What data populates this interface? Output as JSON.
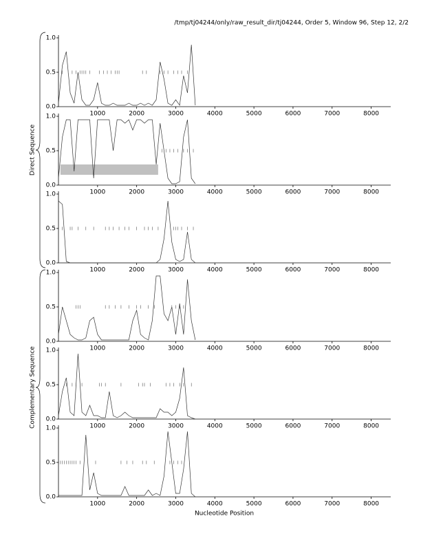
{
  "header": {
    "title": "/tmp/tj04244/only/raw_result_dir/tj04244, Order 5, Window 96, Step 12, 2/2"
  },
  "group_labels": [
    "Direct Sequence",
    "Complementary Sequence"
  ],
  "xlabel": "Nucleotide Position",
  "chart_data": [
    {
      "type": "line",
      "xlim": [
        0,
        8500
      ],
      "ylim": [
        0,
        1
      ],
      "xticks": [
        1000,
        2000,
        3000,
        4000,
        5000,
        6000,
        7000,
        8000
      ],
      "yticks": [
        {
          "value": 0,
          "label": "0.0"
        },
        {
          "value": 0.5,
          "label": "0.5"
        },
        {
          "value": 1,
          "label": "1.0"
        }
      ],
      "x": [
        0,
        100,
        200,
        300,
        400,
        500,
        600,
        700,
        800,
        900,
        1000,
        1100,
        1200,
        1300,
        1400,
        1500,
        1600,
        1700,
        1800,
        1900,
        2000,
        2100,
        2200,
        2300,
        2400,
        2500,
        2600,
        2700,
        2800,
        2900,
        3000,
        3100,
        3200,
        3300,
        3400,
        3500
      ],
      "series": [
        {
          "color": "#333333",
          "values": [
            0.05,
            0.6,
            0.8,
            0.2,
            0.05,
            0.5,
            0.1,
            0.02,
            0.02,
            0.1,
            0.35,
            0.05,
            0.02,
            0.02,
            0.05,
            0.02,
            0.02,
            0.02,
            0.05,
            0.02,
            0.02,
            0.05,
            0.02,
            0.05,
            0.02,
            0.1,
            0.65,
            0.4,
            0.05,
            0.02,
            0.1,
            0.02,
            0.45,
            0.2,
            0.9,
            0.02
          ]
        }
      ],
      "markers": {
        "y": 0.5,
        "x": [
          100,
          250,
          350,
          450,
          550,
          600,
          650,
          700,
          800,
          1050,
          1150,
          1250,
          1350,
          1450,
          1500,
          1550,
          2150,
          2250,
          2600,
          2700,
          2800,
          2950,
          3050,
          3150,
          3300
        ]
      }
    },
    {
      "type": "line",
      "xlim": [
        0,
        8500
      ],
      "ylim": [
        0,
        1
      ],
      "xticks": [
        1000,
        2000,
        3000,
        4000,
        5000,
        6000,
        7000,
        8000
      ],
      "yticks": [
        {
          "value": 0,
          "label": "0.0"
        },
        {
          "value": 0.5,
          "label": "0.5"
        },
        {
          "value": 1,
          "label": "1.0"
        }
      ],
      "x": [
        0,
        100,
        200,
        300,
        400,
        500,
        600,
        700,
        800,
        900,
        1000,
        1100,
        1200,
        1300,
        1400,
        1500,
        1600,
        1700,
        1800,
        1900,
        2000,
        2100,
        2200,
        2300,
        2400,
        2500,
        2600,
        2700,
        2800,
        2900,
        3000,
        3100,
        3200,
        3300,
        3400,
        3500
      ],
      "series": [
        {
          "color": "#333333",
          "values": [
            0.1,
            0.7,
            0.95,
            0.95,
            0.2,
            0.95,
            0.95,
            0.95,
            0.95,
            0.1,
            0.95,
            0.95,
            0.95,
            0.95,
            0.5,
            0.95,
            0.95,
            0.9,
            0.95,
            0.8,
            0.95,
            0.95,
            0.9,
            0.95,
            0.95,
            0.3,
            0.9,
            0.5,
            0.1,
            0.02,
            0.02,
            0.05,
            0.7,
            0.95,
            0.1,
            0.02
          ]
        }
      ],
      "markers": {
        "y": 0.5,
        "x": [
          2650,
          2750,
          2850,
          2950,
          3050,
          3200,
          3300,
          3450
        ]
      },
      "highlight": {
        "x": [
          50,
          2550
        ],
        "y": [
          0.15,
          0.3
        ],
        "color": "#c0c0c0"
      }
    },
    {
      "type": "line",
      "xlim": [
        0,
        8500
      ],
      "ylim": [
        0,
        1
      ],
      "xticks": [
        1000,
        2000,
        3000,
        4000,
        5000,
        6000,
        7000,
        8000
      ],
      "yticks": [
        {
          "value": 0,
          "label": "0.0"
        },
        {
          "value": 0.5,
          "label": "0.5"
        },
        {
          "value": 1,
          "label": "1.0"
        }
      ],
      "x": [
        0,
        100,
        200,
        300,
        400,
        500,
        600,
        700,
        800,
        900,
        1000,
        1100,
        1200,
        1300,
        1400,
        1500,
        1600,
        1700,
        1800,
        1900,
        2000,
        2100,
        2200,
        2300,
        2400,
        2500,
        2600,
        2700,
        2800,
        2900,
        3000,
        3100,
        3200,
        3300,
        3400,
        3500
      ],
      "series": [
        {
          "color": "#333333",
          "values": [
            0.9,
            0.85,
            0.02,
            0,
            0,
            0,
            0,
            0,
            0,
            0,
            0,
            0,
            0,
            0,
            0,
            0,
            0,
            0,
            0,
            0,
            0,
            0,
            0,
            0,
            0,
            0,
            0.05,
            0.35,
            0.9,
            0.3,
            0.05,
            0.02,
            0.05,
            0.45,
            0.05,
            0
          ]
        }
      ],
      "markers": {
        "y": 0.5,
        "x": [
          100,
          300,
          350,
          500,
          700,
          900,
          1200,
          1300,
          1400,
          1550,
          1700,
          1800,
          2000,
          2200,
          2300,
          2400,
          2550,
          2950,
          3000,
          3050,
          3150,
          3300,
          3450
        ]
      }
    },
    {
      "type": "line",
      "xlim": [
        0,
        8500
      ],
      "ylim": [
        0,
        1
      ],
      "xticks": [
        1000,
        2000,
        3000,
        4000,
        5000,
        6000,
        7000,
        8000
      ],
      "yticks": [
        {
          "value": 0,
          "label": "0.0"
        },
        {
          "value": 0.5,
          "label": "0.5"
        },
        {
          "value": 1,
          "label": "1.0"
        }
      ],
      "x": [
        0,
        100,
        200,
        300,
        400,
        500,
        600,
        700,
        800,
        900,
        1000,
        1100,
        1200,
        1300,
        1400,
        1500,
        1600,
        1700,
        1800,
        1900,
        2000,
        2100,
        2200,
        2300,
        2400,
        2500,
        2600,
        2700,
        2800,
        2900,
        3000,
        3100,
        3200,
        3300,
        3400,
        3500
      ],
      "series": [
        {
          "color": "#333333",
          "values": [
            0.1,
            0.5,
            0.3,
            0.1,
            0.05,
            0.02,
            0.02,
            0.05,
            0.3,
            0.35,
            0.1,
            0.02,
            0.02,
            0.02,
            0.02,
            0.02,
            0.02,
            0.02,
            0.02,
            0.3,
            0.45,
            0.1,
            0.05,
            0.02,
            0.3,
            0.95,
            0.95,
            0.4,
            0.3,
            0.5,
            0.1,
            0.55,
            0.1,
            0.9,
            0.3,
            0.02
          ]
        }
      ],
      "markers": {
        "y": 0.5,
        "x": [
          450,
          500,
          550,
          1200,
          1300,
          1450,
          1600,
          1800,
          2000,
          2100,
          2300,
          2450,
          2900,
          3000,
          3100,
          3200
        ]
      }
    },
    {
      "type": "line",
      "xlim": [
        0,
        8500
      ],
      "ylim": [
        0,
        1
      ],
      "xticks": [
        1000,
        2000,
        3000,
        4000,
        5000,
        6000,
        7000,
        8000
      ],
      "yticks": [
        {
          "value": 0,
          "label": "0.0"
        },
        {
          "value": 0.5,
          "label": "0.5"
        },
        {
          "value": 1,
          "label": "1.0"
        }
      ],
      "x": [
        0,
        100,
        200,
        300,
        400,
        500,
        600,
        700,
        800,
        900,
        1000,
        1100,
        1200,
        1300,
        1400,
        1500,
        1600,
        1700,
        1800,
        1900,
        2000,
        2100,
        2200,
        2300,
        2400,
        2500,
        2600,
        2700,
        2800,
        2900,
        3000,
        3100,
        3200,
        3300,
        3400,
        3500
      ],
      "series": [
        {
          "color": "#333333",
          "values": [
            0.05,
            0.4,
            0.6,
            0.1,
            0.05,
            0.95,
            0.1,
            0.05,
            0.2,
            0.05,
            0.05,
            0.02,
            0.02,
            0.4,
            0.05,
            0.02,
            0.05,
            0.1,
            0.05,
            0.02,
            0.02,
            0.02,
            0.02,
            0.02,
            0.02,
            0.02,
            0.15,
            0.1,
            0.1,
            0.05,
            0.1,
            0.3,
            0.75,
            0.05,
            0.02,
            0
          ]
        }
      ],
      "markers": {
        "y": 0.5,
        "x": [
          200,
          350,
          450,
          600,
          1050,
          1100,
          1200,
          1600,
          2050,
          2150,
          2200,
          2350,
          2750,
          2850,
          2950,
          3100,
          3200,
          3400
        ]
      }
    },
    {
      "type": "line",
      "xlim": [
        0,
        8500
      ],
      "ylim": [
        0,
        1
      ],
      "xticks": [
        1000,
        2000,
        3000,
        4000,
        5000,
        6000,
        7000,
        8000
      ],
      "yticks": [
        {
          "value": 0,
          "label": "0.0"
        },
        {
          "value": 0.5,
          "label": "0.5"
        },
        {
          "value": 1,
          "label": "1.0"
        }
      ],
      "x": [
        0,
        100,
        200,
        300,
        400,
        500,
        600,
        700,
        800,
        900,
        1000,
        1100,
        1200,
        1300,
        1400,
        1500,
        1600,
        1700,
        1800,
        1900,
        2000,
        2100,
        2200,
        2300,
        2400,
        2500,
        2600,
        2700,
        2800,
        2900,
        3000,
        3100,
        3200,
        3300,
        3400,
        3500
      ],
      "series": [
        {
          "color": "#333333",
          "values": [
            0.02,
            0.02,
            0.02,
            0.02,
            0.02,
            0.02,
            0.02,
            0.9,
            0.1,
            0.35,
            0.05,
            0.02,
            0.02,
            0.02,
            0.02,
            0.02,
            0.02,
            0.15,
            0.02,
            0.02,
            0.02,
            0.02,
            0.02,
            0.1,
            0.02,
            0.05,
            0.02,
            0.3,
            0.95,
            0.5,
            0.05,
            0.05,
            0.4,
            0.95,
            0.05,
            0
          ]
        }
      ],
      "markers": {
        "y": 0.5,
        "x": [
          50,
          100,
          150,
          200,
          250,
          300,
          350,
          400,
          450,
          550,
          950,
          1600,
          1750,
          1900,
          2150,
          2250,
          2450,
          2850,
          2950,
          3050,
          3150,
          3350
        ]
      }
    }
  ]
}
